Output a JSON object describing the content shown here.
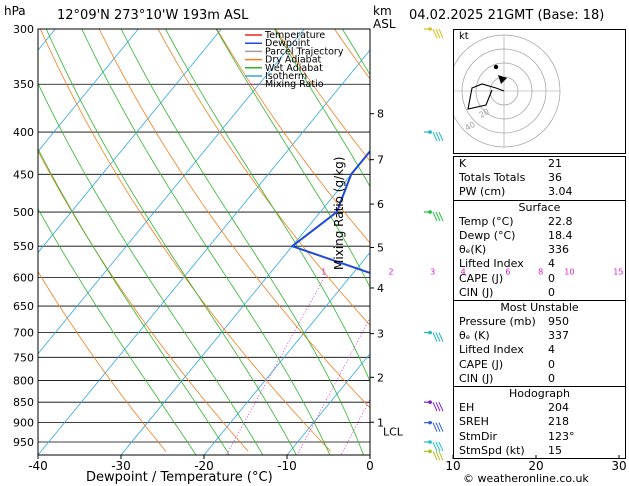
{
  "header": {
    "hpa_label": "hPa",
    "location": "12°09'N 273°10'W 193m ASL",
    "km_label": "km",
    "asl_label": "ASL",
    "date": "04.02.2025 21GMT (Base: 18)"
  },
  "legend": [
    {
      "label": "Temperature",
      "color": "#e8231e"
    },
    {
      "label": "Dewpoint",
      "color": "#1f49d6"
    },
    {
      "label": "Parcel Trajectory",
      "color": "#9e9e9e"
    },
    {
      "label": "Dry Adiabat",
      "color": "#f07f1e"
    },
    {
      "label": "Wet Adiabat",
      "color": "#2fb52f"
    },
    {
      "label": "Isotherm",
      "color": "#30a8e0"
    },
    {
      "label": "Mixing Ratio",
      "color": "#d81dd8"
    }
  ],
  "chart_data": {
    "type": "line",
    "title": "",
    "xlabel": "Dewpoint / Temperature (°C)",
    "ylabel": "Mixing Ratio (g/kg)",
    "xlim": [
      -40,
      38
    ],
    "x_ticks": [
      -40,
      -30,
      -20,
      -10,
      0,
      10,
      20,
      30
    ],
    "pressure_levels": [
      300,
      350,
      400,
      450,
      500,
      550,
      600,
      650,
      700,
      750,
      800,
      850,
      900,
      950
    ],
    "km_ticks": [
      {
        "km": "8",
        "p": 380
      },
      {
        "km": "7",
        "p": 432
      },
      {
        "km": "6",
        "p": 489
      },
      {
        "km": "5",
        "p": 552
      },
      {
        "km": "4",
        "p": 618
      },
      {
        "km": "3",
        "p": 702
      },
      {
        "km": "2",
        "p": 793
      },
      {
        "km": "1",
        "p": 899
      }
    ],
    "lcl": {
      "label": "LCL",
      "p": 922
    },
    "mixing_ratio_labels": [
      {
        "label": "1",
        "p": 1
      },
      {
        "label": "2",
        "p": 2
      },
      {
        "label": "3",
        "p": 3
      },
      {
        "label": "4",
        "p": 4
      },
      {
        "label": "6",
        "p": 6
      },
      {
        "label": "8",
        "p": 8
      },
      {
        "label": "10",
        "p": 10
      },
      {
        "label": "15",
        "p": 15
      },
      {
        "label": "20",
        "p": 20
      },
      {
        "label": "25",
        "p": 25
      }
    ],
    "series": [
      {
        "name": "Temperature",
        "color": "#e8231e",
        "points": [
          [
            975,
            22.8
          ],
          [
            950,
            21.5
          ],
          [
            925,
            20.0
          ],
          [
            900,
            18.8
          ],
          [
            850,
            16.4
          ],
          [
            800,
            13.8
          ],
          [
            750,
            11.3
          ],
          [
            700,
            8.6
          ],
          [
            650,
            4.8
          ],
          [
            600,
            1.0
          ],
          [
            550,
            -3.0
          ],
          [
            500,
            -7.8
          ],
          [
            450,
            -13.5
          ],
          [
            400,
            -20.0
          ],
          [
            350,
            -28.0
          ],
          [
            300,
            -37.0
          ]
        ]
      },
      {
        "name": "Dewpoint",
        "color": "#1f49d6",
        "points": [
          [
            975,
            18.4
          ],
          [
            950,
            17.6
          ],
          [
            925,
            16.6
          ],
          [
            900,
            15.6
          ],
          [
            850,
            11.0
          ],
          [
            800,
            5.8
          ],
          [
            750,
            3.0
          ],
          [
            700,
            0.5
          ],
          [
            650,
            -4.0
          ],
          [
            600,
            -16.0
          ],
          [
            550,
            -30.0
          ],
          [
            500,
            -28.0
          ],
          [
            450,
            -30.0
          ],
          [
            400,
            -30.0
          ],
          [
            350,
            -20.0
          ],
          [
            300,
            -35.0
          ]
        ]
      },
      {
        "name": "Parcel Trajectory",
        "color": "#9e9e9e",
        "points": [
          [
            975,
            22.8
          ],
          [
            922,
            19.2
          ],
          [
            900,
            18.4
          ],
          [
            850,
            16.3
          ],
          [
            800,
            13.9
          ],
          [
            750,
            11.3
          ],
          [
            700,
            8.4
          ],
          [
            650,
            5.1
          ],
          [
            600,
            1.5
          ],
          [
            550,
            -2.6
          ],
          [
            500,
            -7.4
          ],
          [
            450,
            -13.0
          ],
          [
            400,
            -19.8
          ],
          [
            350,
            -28.0
          ],
          [
            300,
            -38.0
          ]
        ]
      }
    ],
    "grid": true
  },
  "wind_barbs": [
    {
      "p": 300,
      "color": "#d8c020"
    },
    {
      "p": 400,
      "color": "#20b8c0"
    },
    {
      "p": 500,
      "color": "#20c040"
    },
    {
      "p": 700,
      "color": "#20b8c0"
    },
    {
      "p": 850,
      "color": "#8020c0"
    },
    {
      "p": 900,
      "color": "#3060d0"
    },
    {
      "p": 950,
      "color": "#20c0d0"
    },
    {
      "p": 975,
      "color": "#b0c020"
    }
  ],
  "hodograph": {
    "label": "kt",
    "ring_labels": [
      "20",
      "40"
    ]
  },
  "indices": [
    {
      "key": "K",
      "value": "21"
    },
    {
      "key": "Totals Totals",
      "value": "36"
    },
    {
      "key": "PW (cm)",
      "value": "3.04"
    }
  ],
  "surface": {
    "title": "Surface",
    "rows": [
      {
        "key": "Temp (°C)",
        "value": "22.8"
      },
      {
        "key": "Dewp (°C)",
        "value": "18.4"
      },
      {
        "key": "θₑ(K)",
        "value": "336"
      },
      {
        "key": "Lifted Index",
        "value": "4"
      },
      {
        "key": "CAPE (J)",
        "value": "0"
      },
      {
        "key": "CIN (J)",
        "value": "0"
      }
    ]
  },
  "most_unstable": {
    "title": "Most Unstable",
    "rows": [
      {
        "key": "Pressure (mb)",
        "value": "950"
      },
      {
        "key": "θₑ (K)",
        "value": "337"
      },
      {
        "key": "Lifted Index",
        "value": "4"
      },
      {
        "key": "CAPE (J)",
        "value": "0"
      },
      {
        "key": "CIN (J)",
        "value": "0"
      }
    ]
  },
  "hodograph_table": {
    "title": "Hodograph",
    "rows": [
      {
        "key": "EH",
        "value": "204"
      },
      {
        "key": "SREH",
        "value": "218"
      },
      {
        "key": "StmDir",
        "value": "123°"
      },
      {
        "key": "StmSpd (kt)",
        "value": "15"
      }
    ]
  },
  "copyright": "© weatheronline.co.uk"
}
